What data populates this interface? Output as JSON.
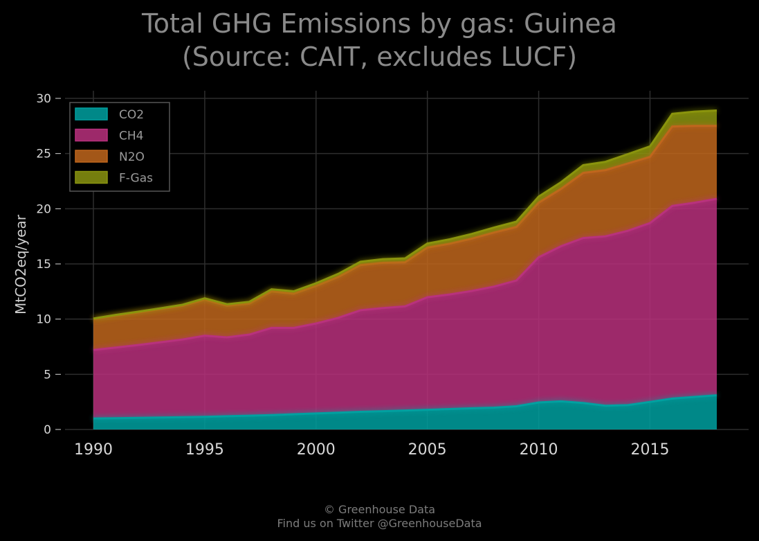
{
  "chart_data": {
    "type": "area",
    "stacked": true,
    "title": "Total GHG Emissions by gas: Guinea",
    "subtitle": "(Source: CAIT, excludes LUCF)",
    "xlabel": "",
    "ylabel": "MtCO2eq/year",
    "xlim": [
      1990,
      2018
    ],
    "ylim": [
      0,
      30
    ],
    "x_ticks": [
      1990,
      1995,
      2000,
      2005,
      2010,
      2015
    ],
    "y_ticks": [
      0,
      5,
      10,
      15,
      20,
      25,
      30
    ],
    "grid": true,
    "legend_position": "top-left",
    "x": [
      1990,
      1991,
      1992,
      1993,
      1994,
      1995,
      1996,
      1997,
      1998,
      1999,
      2000,
      2001,
      2002,
      2003,
      2004,
      2005,
      2006,
      2007,
      2008,
      2009,
      2010,
      2011,
      2012,
      2013,
      2014,
      2015,
      2016,
      2017,
      2018
    ],
    "series": [
      {
        "name": "CO2",
        "color": "#00a0a0",
        "values": [
          1.0,
          1.02,
          1.05,
          1.08,
          1.12,
          1.15,
          1.2,
          1.25,
          1.3,
          1.38,
          1.45,
          1.52,
          1.6,
          1.66,
          1.72,
          1.78,
          1.85,
          1.92,
          1.98,
          2.1,
          2.45,
          2.55,
          2.4,
          2.15,
          2.2,
          2.5,
          2.8,
          2.95,
          3.1
        ]
      },
      {
        "name": "CH4",
        "color": "#b8307d",
        "values": [
          6.2,
          6.4,
          6.6,
          6.82,
          7.03,
          7.35,
          7.15,
          7.35,
          7.9,
          7.82,
          8.15,
          8.6,
          9.2,
          9.34,
          9.43,
          10.2,
          10.38,
          10.63,
          10.97,
          11.4,
          13.15,
          14.05,
          14.95,
          15.35,
          15.8,
          16.2,
          17.45,
          17.6,
          17.8
        ]
      },
      {
        "name": "N2O",
        "color": "#c0661c",
        "values": [
          2.8,
          2.9,
          2.95,
          3.0,
          3.05,
          3.25,
          2.85,
          2.8,
          3.3,
          3.1,
          3.4,
          3.7,
          4.1,
          4.1,
          4.0,
          4.5,
          4.6,
          4.75,
          4.9,
          4.85,
          4.95,
          5.2,
          5.9,
          6.0,
          6.1,
          6.0,
          7.2,
          6.95,
          6.6
        ]
      },
      {
        "name": "F-Gas",
        "color": "#8a9410",
        "values": [
          0.05,
          0.06,
          0.07,
          0.08,
          0.1,
          0.13,
          0.15,
          0.17,
          0.2,
          0.22,
          0.25,
          0.28,
          0.3,
          0.33,
          0.35,
          0.37,
          0.4,
          0.42,
          0.45,
          0.48,
          0.55,
          0.6,
          0.7,
          0.75,
          0.85,
          0.95,
          1.15,
          1.3,
          1.4
        ]
      }
    ]
  },
  "footer": {
    "line1": "© Greenhouse Data",
    "line2": "Find us on Twitter @GreenhouseData"
  }
}
